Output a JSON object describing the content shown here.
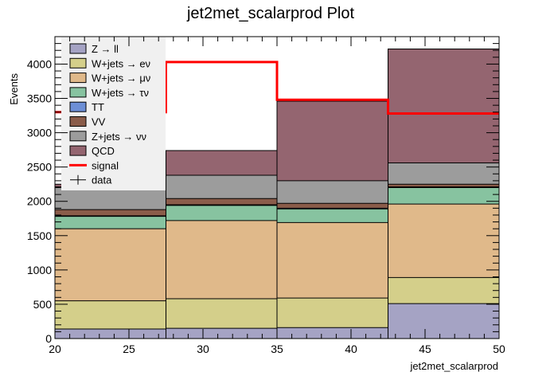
{
  "chart_data": {
    "type": "stacked_histogram",
    "title": "jet2met_scalarprod Plot",
    "xlabel": "jet2met_scalarprod",
    "ylabel": "Events",
    "xlim": [
      20,
      50
    ],
    "ylim": [
      0,
      4400
    ],
    "bin_edges": [
      20,
      27.5,
      35,
      42.5,
      50
    ],
    "x_ticks": [
      20,
      25,
      30,
      35,
      40,
      45,
      50
    ],
    "y_ticks": [
      0,
      500,
      1000,
      1500,
      2000,
      2500,
      3000,
      3500,
      4000
    ],
    "x_tick_labels": [
      "20",
      "25",
      "30",
      "35",
      "40",
      "45",
      "50"
    ],
    "y_tick_labels": [
      "0",
      "500",
      "1000",
      "1500",
      "2000",
      "2500",
      "3000",
      "3500",
      "4000"
    ],
    "series": [
      {
        "name": "Z → ll",
        "color": "#a5a3c4",
        "values": [
          140,
          150,
          160,
          510
        ]
      },
      {
        "name": "W+jets → eν",
        "color": "#d4cf8a",
        "values": [
          410,
          430,
          430,
          380
        ]
      },
      {
        "name": "W+jets → μν",
        "color": "#e0b98a",
        "values": [
          1050,
          1140,
          1100,
          1070
        ]
      },
      {
        "name": "W+jets → τν",
        "color": "#87c3a0",
        "values": [
          180,
          220,
          200,
          240
        ]
      },
      {
        "name": "TT",
        "color": "#6d8fd6",
        "values": [
          10,
          10,
          10,
          10
        ]
      },
      {
        "name": "VV",
        "color": "#8a5c4a",
        "values": [
          90,
          90,
          70,
          40
        ]
      },
      {
        "name": "Z+jets → νν",
        "color": "#9c9c9c",
        "values": [
          330,
          340,
          330,
          310
        ]
      },
      {
        "name": "QCD",
        "color": "#946570",
        "values": [
          40,
          360,
          1160,
          1660
        ]
      }
    ],
    "signal": {
      "name": "signal",
      "color": "#ff0000",
      "values": [
        3300,
        4030,
        3480,
        3280
      ]
    },
    "data": {
      "name": "data"
    },
    "legend_position": "top-left",
    "legend_order": [
      "Z → ll",
      "W+jets → eν",
      "W+jets → μν",
      "W+jets → τν",
      "TT",
      "VV",
      "Z+jets → νν",
      "QCD",
      "signal",
      "data"
    ]
  }
}
